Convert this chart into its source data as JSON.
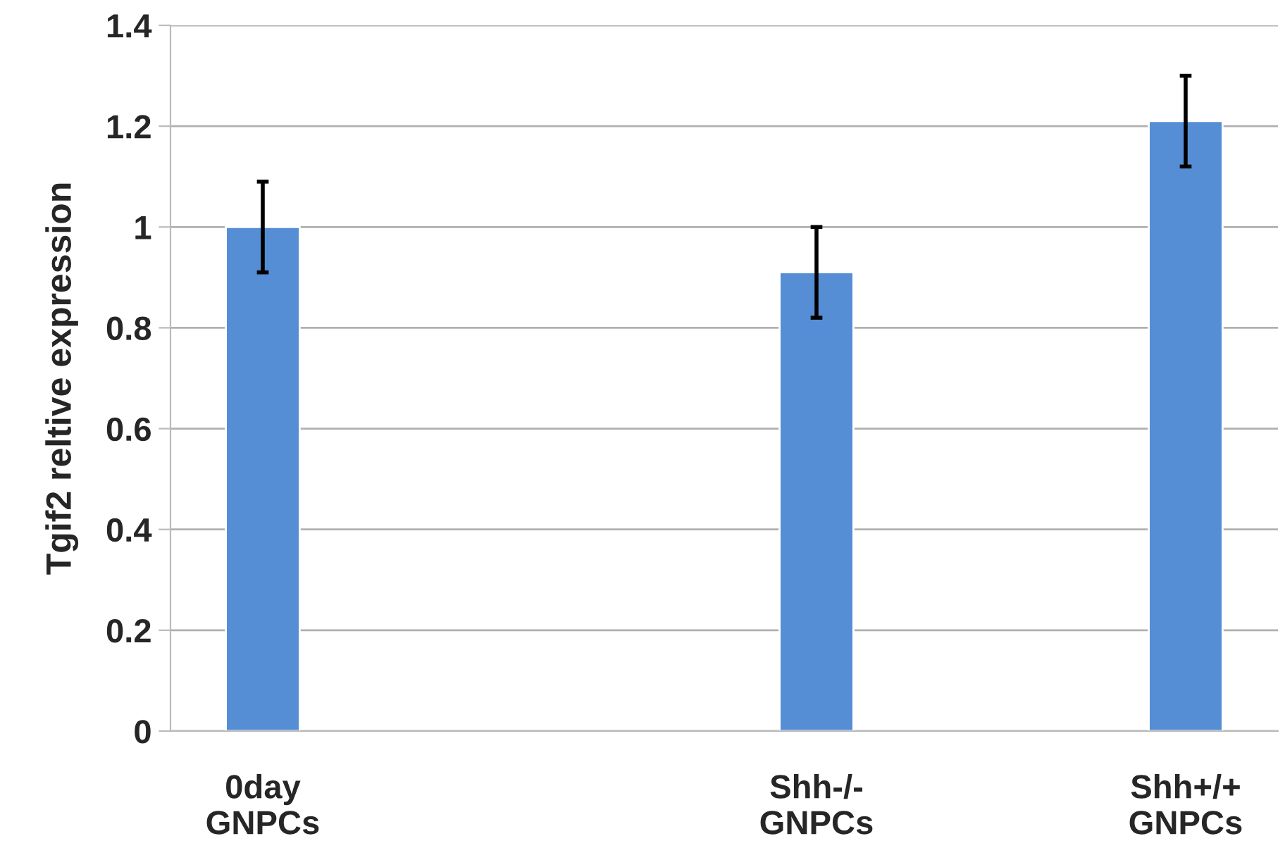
{
  "chart_data": {
    "type": "bar",
    "ylabel": "Tgif2 reltive expression",
    "categories": [
      "0day\nGNPCs",
      null,
      null,
      "Shh-/-\nGNPCs",
      null,
      "Shh+/+\nGNPCs"
    ],
    "values": [
      1.0,
      null,
      null,
      0.91,
      null,
      1.21
    ],
    "errors": [
      0.09,
      null,
      null,
      0.09,
      null,
      0.09
    ],
    "color": "#558ed5",
    "ylim": [
      0,
      1.4
    ],
    "yticks": [
      0,
      0.2,
      0.4,
      0.6,
      0.8,
      1,
      1.2,
      1.4
    ],
    "grid": "y",
    "legend": false
  }
}
